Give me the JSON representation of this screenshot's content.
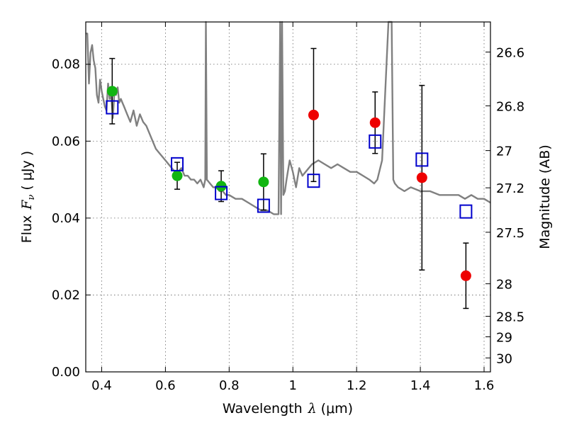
{
  "chart_data": {
    "type": "scatter",
    "xlabel_text": "Wavelength",
    "xlabel_symbol": "λ",
    "xlabel_unit": "(μm)",
    "ylabel_text": "Flux",
    "ylabel_symbol": "F",
    "ylabel_subscript": "ν",
    "ylabel_unit": "( μJy )",
    "y2label": "Magnitude (AB)",
    "xlim": [
      0.35,
      1.62
    ],
    "ylim": [
      0.0,
      0.091
    ],
    "x_ticks": [
      0.4,
      0.6,
      0.8,
      1.0,
      1.2,
      1.4,
      1.6
    ],
    "x_tick_labels": [
      "0.4",
      "0.6",
      "0.8",
      "1",
      "1.2",
      "1.4",
      "1.6"
    ],
    "y_ticks": [
      0.0,
      0.02,
      0.04,
      0.06,
      0.08
    ],
    "y_tick_labels": [
      "0.00",
      "0.02",
      "0.04",
      "0.06",
      "0.08"
    ],
    "y2_ticks": [
      26.6,
      26.8,
      27,
      27.2,
      27.5,
      28,
      28.5,
      29,
      30
    ],
    "y2_tick_labels": [
      "26.6",
      "26.8",
      "27",
      "27.2",
      "27.5",
      "28",
      "28.5",
      "29",
      "30"
    ],
    "grid": true,
    "colors": {
      "green": "#11b511",
      "red": "#ee0000",
      "blue": "#0000cc",
      "spectrum": "#808080",
      "errorbar": "#000000"
    },
    "series": [
      {
        "marker": "circle-green",
        "x": [
          0.433,
          0.637,
          0.775,
          0.908
        ],
        "y": [
          0.073,
          0.051,
          0.0483,
          0.0494
        ],
        "yerr": [
          0.0085,
          0.0035,
          0.004,
          0.0073
        ]
      },
      {
        "marker": "circle-red",
        "x": [
          1.065,
          1.258,
          1.405,
          1.543
        ],
        "y": [
          0.0668,
          0.0648,
          0.0505,
          0.025
        ],
        "yerr": [
          0.0173,
          0.008,
          0.024,
          0.0085
        ]
      },
      {
        "marker": "square-open-blue",
        "x": [
          0.433,
          0.637,
          0.775,
          0.908,
          1.065,
          1.258,
          1.405,
          1.543
        ],
        "y": [
          0.0688,
          0.054,
          0.0465,
          0.0432,
          0.0497,
          0.0599,
          0.0552,
          0.0417
        ]
      }
    ],
    "spectrum": {
      "x": [
        0.35,
        0.355,
        0.36,
        0.365,
        0.37,
        0.375,
        0.38,
        0.385,
        0.39,
        0.395,
        0.4,
        0.405,
        0.41,
        0.415,
        0.42,
        0.425,
        0.43,
        0.435,
        0.44,
        0.445,
        0.45,
        0.455,
        0.46,
        0.465,
        0.47,
        0.48,
        0.49,
        0.5,
        0.51,
        0.52,
        0.53,
        0.54,
        0.55,
        0.56,
        0.57,
        0.58,
        0.59,
        0.6,
        0.61,
        0.62,
        0.63,
        0.64,
        0.65,
        0.66,
        0.67,
        0.68,
        0.69,
        0.7,
        0.71,
        0.72,
        0.725,
        0.727,
        0.73,
        0.74,
        0.75,
        0.76,
        0.77,
        0.78,
        0.79,
        0.8,
        0.82,
        0.84,
        0.86,
        0.88,
        0.9,
        0.92,
        0.94,
        0.955,
        0.96,
        0.963,
        0.966,
        0.97,
        0.975,
        0.98,
        0.99,
        1.0,
        1.01,
        1.02,
        1.03,
        1.04,
        1.06,
        1.08,
        1.1,
        1.12,
        1.14,
        1.16,
        1.18,
        1.2,
        1.22,
        1.24,
        1.255,
        1.265,
        1.28,
        1.3,
        1.31,
        1.315,
        1.32,
        1.33,
        1.35,
        1.37,
        1.4,
        1.43,
        1.46,
        1.49,
        1.52,
        1.54,
        1.56,
        1.58,
        1.6,
        1.62
      ],
      "y": [
        0.088,
        0.088,
        0.075,
        0.083,
        0.085,
        0.081,
        0.079,
        0.072,
        0.07,
        0.076,
        0.073,
        0.071,
        0.069,
        0.068,
        0.075,
        0.071,
        0.072,
        0.066,
        0.073,
        0.072,
        0.074,
        0.07,
        0.071,
        0.07,
        0.069,
        0.067,
        0.065,
        0.068,
        0.064,
        0.067,
        0.065,
        0.064,
        0.062,
        0.06,
        0.058,
        0.057,
        0.056,
        0.055,
        0.054,
        0.053,
        0.052,
        0.052,
        0.053,
        0.051,
        0.051,
        0.05,
        0.05,
        0.049,
        0.05,
        0.048,
        0.05,
        0.091,
        0.05,
        0.049,
        0.048,
        0.048,
        0.047,
        0.047,
        0.046,
        0.046,
        0.045,
        0.045,
        0.044,
        0.043,
        0.042,
        0.042,
        0.041,
        0.041,
        0.091,
        0.041,
        0.091,
        0.046,
        0.047,
        0.05,
        0.055,
        0.052,
        0.048,
        0.053,
        0.051,
        0.052,
        0.054,
        0.055,
        0.054,
        0.053,
        0.054,
        0.053,
        0.052,
        0.052,
        0.051,
        0.05,
        0.049,
        0.05,
        0.055,
        0.091,
        0.091,
        0.05,
        0.049,
        0.048,
        0.047,
        0.048,
        0.047,
        0.047,
        0.046,
        0.046,
        0.046,
        0.045,
        0.046,
        0.045,
        0.045,
        0.044
      ]
    }
  }
}
